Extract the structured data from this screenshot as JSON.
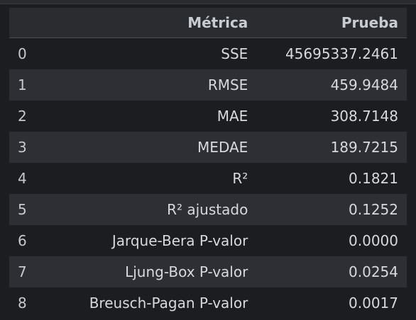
{
  "table": {
    "headers": {
      "index": "",
      "metric": "Métrica",
      "value": "Prueba"
    },
    "rows": [
      {
        "index": "0",
        "metric": "SSE",
        "value": "45695337.2461"
      },
      {
        "index": "1",
        "metric": "RMSE",
        "value": "459.9484"
      },
      {
        "index": "2",
        "metric": "MAE",
        "value": "308.7148"
      },
      {
        "index": "3",
        "metric": "MEDAE",
        "value": "189.7215"
      },
      {
        "index": "4",
        "metric": "R²",
        "value": "0.1821"
      },
      {
        "index": "5",
        "metric": "R² ajustado",
        "value": "0.1252"
      },
      {
        "index": "6",
        "metric": "Jarque-Bera P-valor",
        "value": "0.0000"
      },
      {
        "index": "7",
        "metric": "Ljung-Box P-valor",
        "value": "0.0254"
      },
      {
        "index": "8",
        "metric": "Breusch-Pagan P-valor",
        "value": "0.0017"
      }
    ]
  },
  "colors": {
    "background": "#1c1d20",
    "row_alt": "#2d2f34",
    "header_bg": "#2a2c30",
    "text": "#d7d9dd"
  }
}
